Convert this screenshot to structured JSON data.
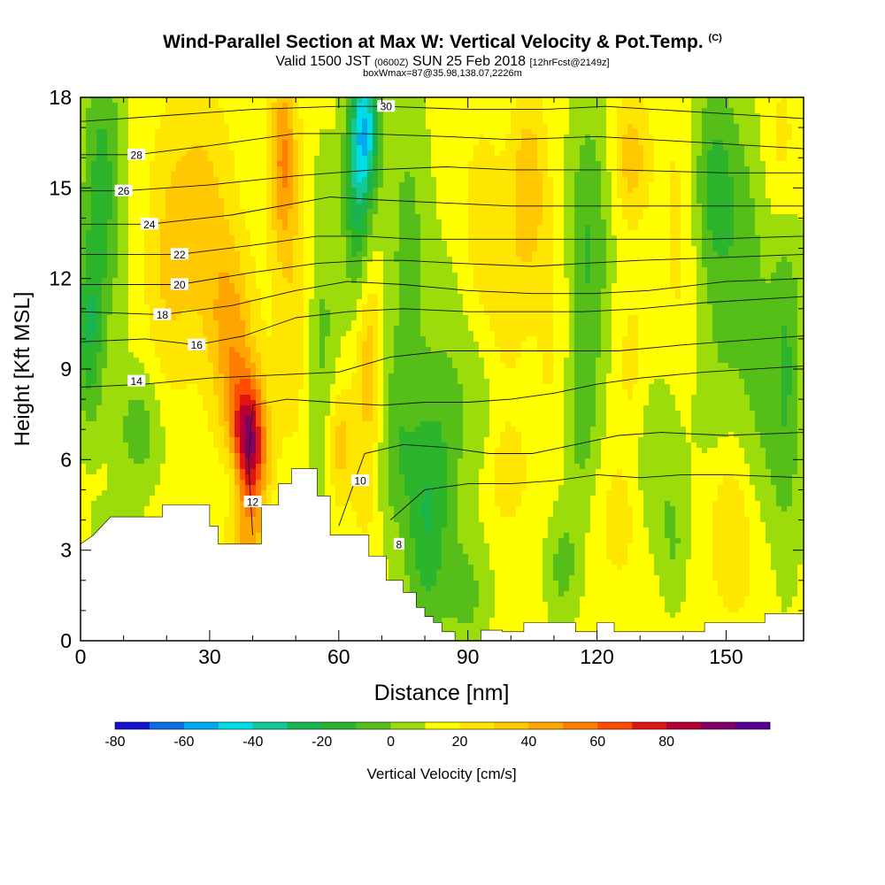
{
  "header": {
    "title": "Wind-Parallel Section at Max W: Vertical Velocity & Pot.Temp.",
    "copyright": "(C)",
    "valid_prefix": "Valid 1500 JST",
    "valid_utc": "(0600Z)",
    "valid_date": "SUN 25 Feb 2018",
    "forecast": "[12hrFcst@2149z]",
    "box_info": "boxWmax=87@35.98,138.07,2226m"
  },
  "colorbar": {
    "label": "Vertical Velocity [cm/s]",
    "tick_labels": [
      "-80",
      "-60",
      "-40",
      "-20",
      "0",
      "20",
      "40",
      "60",
      "80"
    ],
    "colors": [
      "#1414d2",
      "#0a6ee6",
      "#00aaf0",
      "#00dce6",
      "#14c896",
      "#19b450",
      "#2db42d",
      "#55be19",
      "#9bdc0a",
      "#ffff00",
      "#ffe600",
      "#ffc800",
      "#ffa500",
      "#ff7d00",
      "#ff4b00",
      "#e11414",
      "#b40032",
      "#820064",
      "#5a0096"
    ]
  },
  "chart_data": {
    "type": "heatmap",
    "xlabel": "Distance [nm]",
    "ylabel": "Height [Kft MSL]",
    "xlim": [
      0,
      168
    ],
    "ylim": [
      0,
      18
    ],
    "x_ticks": [
      "0",
      "30",
      "60",
      "90",
      "120",
      "150"
    ],
    "y_ticks": [
      "0",
      "3",
      "6",
      "9",
      "12",
      "15",
      "18"
    ],
    "color_levels": [
      -80,
      -70,
      -60,
      -50,
      -40,
      -30,
      -20,
      -10,
      0,
      10,
      20,
      30,
      40,
      50,
      60,
      70,
      80,
      90
    ],
    "shaded_field": "Vertical Velocity [cm/s]",
    "contour_field": "Pot.Temp.",
    "max_updraft": {
      "value": 87,
      "x": 39,
      "y": 6.5
    },
    "terrain": [
      [
        0,
        3.2
      ],
      [
        3,
        3.5
      ],
      [
        7,
        4.1
      ],
      [
        19,
        4.1
      ],
      [
        19,
        4.5
      ],
      [
        30,
        4.5
      ],
      [
        30,
        3.8
      ],
      [
        32,
        3.8
      ],
      [
        32,
        3.2
      ],
      [
        42,
        3.2
      ],
      [
        42,
        4.5
      ],
      [
        46,
        4.5
      ],
      [
        46,
        5.2
      ],
      [
        49,
        5.2
      ],
      [
        49,
        5.7
      ],
      [
        55,
        5.7
      ],
      [
        55,
        4.8
      ],
      [
        58,
        4.8
      ],
      [
        58,
        3.5
      ],
      [
        67,
        3.5
      ],
      [
        67,
        2.8
      ],
      [
        71,
        2.8
      ],
      [
        71,
        2.0
      ],
      [
        75,
        2.0
      ],
      [
        75,
        1.6
      ],
      [
        78,
        1.6
      ],
      [
        78,
        1.1
      ],
      [
        80,
        1.1
      ],
      [
        80,
        0.8
      ],
      [
        82,
        0.8
      ],
      [
        82,
        0.6
      ],
      [
        84,
        0.6
      ],
      [
        84,
        0.3
      ],
      [
        87,
        0.3
      ],
      [
        87,
        0.0
      ],
      [
        93,
        0.0
      ],
      [
        93,
        0.35
      ],
      [
        98,
        0.35
      ],
      [
        98,
        0.3
      ],
      [
        103,
        0.3
      ],
      [
        103,
        0.6
      ],
      [
        115,
        0.6
      ],
      [
        115,
        0.3
      ],
      [
        120,
        0.3
      ],
      [
        120,
        0.6
      ],
      [
        124,
        0.6
      ],
      [
        124,
        0.3
      ],
      [
        145,
        0.3
      ],
      [
        145,
        0.6
      ],
      [
        159,
        0.6
      ],
      [
        159,
        0.9
      ],
      [
        168,
        0.9
      ]
    ],
    "contours": [
      {
        "level": 8,
        "label": "8",
        "label_at": [
          74,
          3.2
        ],
        "points": [
          [
            72,
            4.0
          ],
          [
            80,
            5.0
          ],
          [
            90,
            5.2
          ],
          [
            100,
            5.2
          ],
          [
            110,
            5.3
          ],
          [
            120,
            5.5
          ],
          [
            130,
            5.4
          ],
          [
            140,
            5.5
          ],
          [
            150,
            5.5
          ],
          [
            168,
            5.4
          ]
        ]
      },
      {
        "level": 10,
        "label": "10",
        "label_at": [
          65,
          5.3
        ],
        "points": [
          [
            60,
            3.8
          ],
          [
            63,
            5.0
          ],
          [
            66,
            6.2
          ],
          [
            75,
            6.5
          ],
          [
            85,
            6.4
          ],
          [
            95,
            6.2
          ],
          [
            105,
            6.2
          ],
          [
            115,
            6.5
          ],
          [
            125,
            6.8
          ],
          [
            135,
            6.9
          ],
          [
            150,
            6.8
          ],
          [
            168,
            6.9
          ]
        ]
      },
      {
        "level": 12,
        "label": "12",
        "label_at": [
          40,
          4.6
        ],
        "points": [
          [
            40,
            3.5
          ],
          [
            39,
            6.0
          ],
          [
            40,
            7.8
          ],
          [
            48,
            8.0
          ],
          [
            58,
            7.9
          ],
          [
            70,
            7.8
          ],
          [
            80,
            7.9
          ],
          [
            90,
            7.9
          ],
          [
            100,
            8.0
          ],
          [
            110,
            8.2
          ],
          [
            120,
            8.5
          ],
          [
            130,
            8.7
          ],
          [
            145,
            8.9
          ],
          [
            168,
            9.1
          ]
        ]
      },
      {
        "level": 14,
        "label": "14",
        "label_at": [
          13,
          8.6
        ],
        "points": [
          [
            0,
            8.4
          ],
          [
            15,
            8.5
          ],
          [
            30,
            8.7
          ],
          [
            45,
            8.8
          ],
          [
            60,
            8.9
          ],
          [
            72,
            9.4
          ],
          [
            85,
            9.6
          ],
          [
            100,
            9.6
          ],
          [
            115,
            9.6
          ],
          [
            125,
            9.6
          ],
          [
            140,
            9.8
          ],
          [
            168,
            10.1
          ]
        ]
      },
      {
        "level": 16,
        "label": "16",
        "label_at": [
          27,
          9.8
        ],
        "points": [
          [
            0,
            9.9
          ],
          [
            15,
            10.0
          ],
          [
            27,
            9.8
          ],
          [
            38,
            10.1
          ],
          [
            50,
            10.7
          ],
          [
            62,
            10.9
          ],
          [
            75,
            11.0
          ],
          [
            90,
            10.9
          ],
          [
            105,
            10.9
          ],
          [
            117,
            10.9
          ],
          [
            130,
            11.0
          ],
          [
            145,
            11.2
          ],
          [
            168,
            11.4
          ]
        ]
      },
      {
        "level": 18,
        "label": "18",
        "label_at": [
          19,
          10.8
        ],
        "points": [
          [
            0,
            10.9
          ],
          [
            19,
            10.8
          ],
          [
            35,
            11.1
          ],
          [
            50,
            11.6
          ],
          [
            62,
            11.9
          ],
          [
            75,
            11.8
          ],
          [
            90,
            11.6
          ],
          [
            105,
            11.5
          ],
          [
            119,
            11.5
          ],
          [
            132,
            11.6
          ],
          [
            150,
            11.9
          ],
          [
            168,
            12.0
          ]
        ]
      },
      {
        "level": 20,
        "label": "20",
        "label_at": [
          23,
          11.8
        ],
        "points": [
          [
            0,
            11.8
          ],
          [
            23,
            11.8
          ],
          [
            40,
            12.2
          ],
          [
            55,
            12.5
          ],
          [
            67,
            12.6
          ],
          [
            75,
            12.6
          ],
          [
            88,
            12.5
          ],
          [
            105,
            12.4
          ],
          [
            117,
            12.5
          ],
          [
            130,
            12.6
          ],
          [
            150,
            12.7
          ],
          [
            168,
            12.8
          ]
        ]
      },
      {
        "level": 22,
        "label": "22",
        "label_at": [
          23,
          12.8
        ],
        "points": [
          [
            0,
            12.8
          ],
          [
            23,
            12.8
          ],
          [
            40,
            13.1
          ],
          [
            55,
            13.4
          ],
          [
            66,
            13.4
          ],
          [
            78,
            13.3
          ],
          [
            95,
            13.3
          ],
          [
            110,
            13.3
          ],
          [
            126,
            13.3
          ],
          [
            145,
            13.3
          ],
          [
            168,
            13.4
          ]
        ]
      },
      {
        "level": 24,
        "label": "24",
        "label_at": [
          16,
          13.8
        ],
        "points": [
          [
            0,
            13.8
          ],
          [
            16,
            13.8
          ],
          [
            35,
            14.1
          ],
          [
            58,
            14.7
          ],
          [
            70,
            14.6
          ],
          [
            85,
            14.5
          ],
          [
            100,
            14.4
          ],
          [
            117,
            14.4
          ],
          [
            135,
            14.4
          ],
          [
            168,
            14.4
          ]
        ]
      },
      {
        "level": 26,
        "label": "26",
        "label_at": [
          10,
          14.9
        ],
        "points": [
          [
            0,
            14.9
          ],
          [
            10,
            14.9
          ],
          [
            30,
            15.1
          ],
          [
            50,
            15.4
          ],
          [
            68,
            15.6
          ],
          [
            85,
            15.7
          ],
          [
            100,
            15.6
          ],
          [
            108,
            15.6
          ],
          [
            125,
            15.6
          ],
          [
            150,
            15.5
          ],
          [
            168,
            15.5
          ]
        ]
      },
      {
        "level": 28,
        "label": "28",
        "label_at": [
          13,
          16.1
        ],
        "points": [
          [
            0,
            16.1
          ],
          [
            13,
            16.1
          ],
          [
            30,
            16.4
          ],
          [
            50,
            16.8
          ],
          [
            65,
            16.8
          ],
          [
            85,
            16.7
          ],
          [
            100,
            16.6
          ],
          [
            120,
            16.7
          ],
          [
            145,
            16.5
          ],
          [
            168,
            16.3
          ]
        ]
      },
      {
        "level": 30,
        "label": "30",
        "label_at": [
          71,
          17.7
        ],
        "points": [
          [
            0,
            17.2
          ],
          [
            20,
            17.4
          ],
          [
            40,
            17.6
          ],
          [
            60,
            17.7
          ],
          [
            71,
            17.7
          ],
          [
            90,
            17.6
          ],
          [
            108,
            17.6
          ],
          [
            122,
            17.7
          ],
          [
            145,
            17.5
          ],
          [
            168,
            17.3
          ]
        ]
      }
    ]
  }
}
